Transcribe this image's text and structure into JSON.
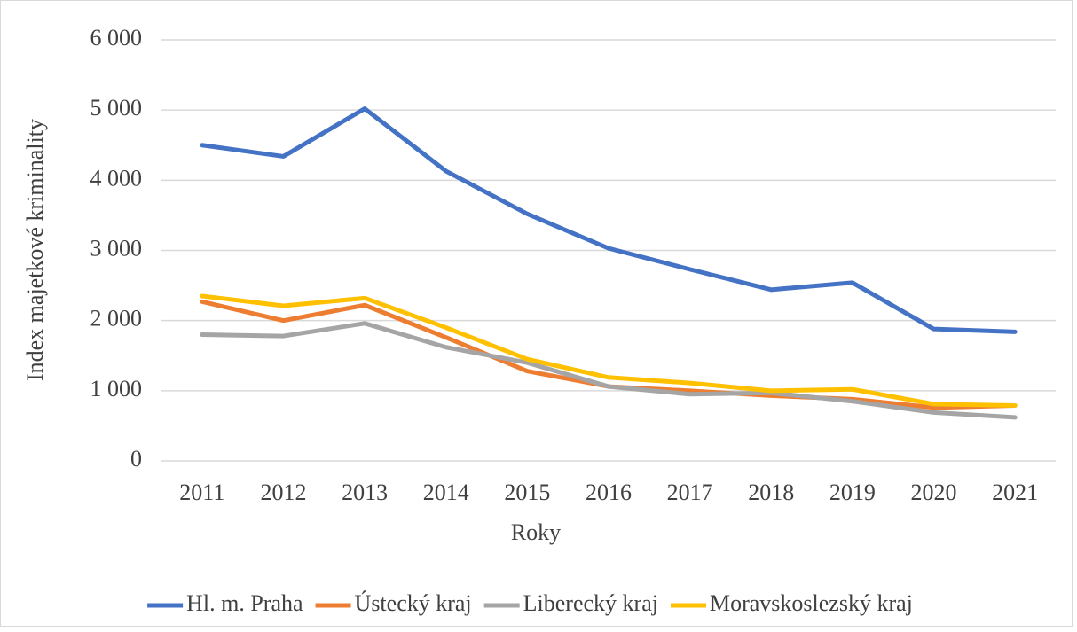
{
  "chart_data": {
    "type": "line",
    "x_label": "Roky",
    "y_label": "Index majetkové kriminality",
    "categories": [
      "2011",
      "2012",
      "2013",
      "2014",
      "2015",
      "2016",
      "2017",
      "2018",
      "2019",
      "2020",
      "2021"
    ],
    "series": [
      {
        "name": "Hl. m. Praha",
        "color": "#4472c4",
        "values": [
          4500,
          4340,
          5020,
          4130,
          3520,
          3030,
          2730,
          2440,
          2540,
          1880,
          1840
        ]
      },
      {
        "name": "Ústecký kraj",
        "color": "#ed7d31",
        "values": [
          2270,
          2000,
          2220,
          1760,
          1280,
          1060,
          1000,
          930,
          880,
          760,
          790
        ]
      },
      {
        "name": "Liberecký kraj",
        "color": "#a5a5a5",
        "values": [
          1800,
          1780,
          1960,
          1620,
          1400,
          1060,
          950,
          970,
          850,
          690,
          620
        ]
      },
      {
        "name": "Moravskoslezský kraj",
        "color": "#ffc000",
        "values": [
          2350,
          2210,
          2320,
          1900,
          1450,
          1190,
          1110,
          1000,
          1020,
          810,
          790
        ]
      }
    ],
    "ylim": [
      0,
      6000
    ],
    "yticks": [
      0,
      {
        "value": 1000,
        "label": "1 000"
      },
      {
        "value": 2000,
        "label": "2 000"
      },
      {
        "value": 3000,
        "label": "3 000"
      },
      {
        "value": 4000,
        "label": "4 000"
      },
      {
        "value": 5000,
        "label": "5 000"
      },
      {
        "value": 6000,
        "label": "6 000"
      }
    ],
    "grid": true,
    "legend": "bottom"
  }
}
